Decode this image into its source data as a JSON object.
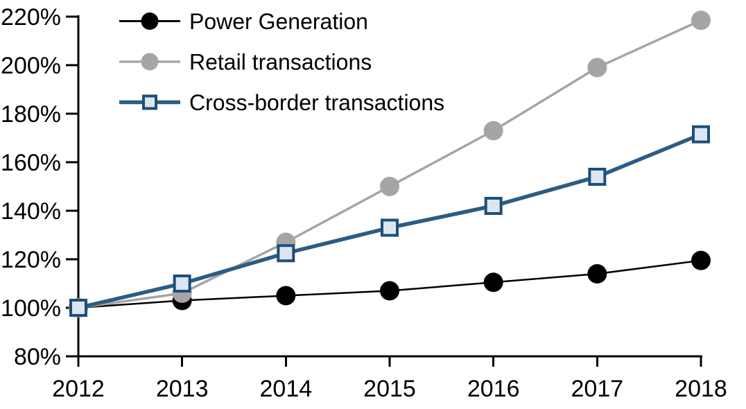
{
  "chart_data": {
    "type": "line",
    "title": "",
    "x_labels": [
      "2012",
      "2013",
      "2014",
      "2015",
      "2016",
      "2017",
      "2018"
    ],
    "y_axis": {
      "min": 80,
      "max": 220,
      "step": 20,
      "tick_labels": [
        "80%",
        "100%",
        "120%",
        "140%",
        "160%",
        "180%",
        "200%",
        "220%"
      ]
    },
    "series": [
      {
        "name": "Power Generation",
        "values": [
          100,
          103,
          105,
          107,
          110.5,
          114,
          119.5
        ],
        "line_color": "#000000",
        "line_width": 2.5,
        "marker": "circle",
        "marker_fill": "#000000",
        "marker_stroke": "none"
      },
      {
        "name": "Retail transactions",
        "values": [
          100,
          106,
          127,
          150,
          173,
          199,
          218.5
        ],
        "line_color": "#A5A5A5",
        "line_width": 3.5,
        "marker": "circle",
        "marker_fill": "#A5A5A5",
        "marker_stroke": "none"
      },
      {
        "name": "Cross-border transactions",
        "values": [
          100,
          110,
          122.5,
          133,
          142,
          154,
          171.5
        ],
        "line_color": "#2B5C85",
        "line_width": 5.5,
        "marker": "square",
        "marker_fill": "#DCE6F1",
        "marker_stroke": "#1F4E79"
      }
    ],
    "legend_position": "top-left",
    "grid": false,
    "background": "#FFFFFF",
    "axis_color": "#000000"
  }
}
